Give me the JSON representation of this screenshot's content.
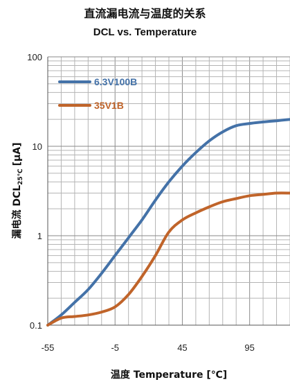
{
  "chart_data": {
    "type": "line",
    "title": "直流漏电流与温度的关系",
    "subtitle": "DCL vs. Temperature",
    "xlabel": "温度 Temperature [℃]",
    "ylabel": "漏电流 DCL25℃ [μA]",
    "ylabel_main": "漏电流 DCL",
    "ylabel_sub": "25℃",
    "ylabel_unit": "[μA]",
    "yscale": "log",
    "xlim": [
      -55,
      125
    ],
    "ylim": [
      0.1,
      100
    ],
    "x_ticks": [
      "-55",
      "-5",
      "45",
      "95"
    ],
    "y_ticks": [
      "0.1",
      "1",
      "10",
      "100"
    ],
    "grid": true,
    "legend_position": "top-left",
    "series": [
      {
        "name": "6.3V100B",
        "color": "#4472a8",
        "x": [
          -55,
          -45,
          -35,
          -25,
          -15,
          -5,
          5,
          15,
          25,
          35,
          45,
          55,
          65,
          75,
          85,
          95,
          105,
          115,
          125
        ],
        "y": [
          0.1,
          0.13,
          0.18,
          0.25,
          0.38,
          0.6,
          0.95,
          1.5,
          2.5,
          4.0,
          6.0,
          8.5,
          11.5,
          14.5,
          17.0,
          18.0,
          18.7,
          19.3,
          20.0
        ]
      },
      {
        "name": "35V1B",
        "color": "#c0642a",
        "x": [
          -55,
          -45,
          -35,
          -25,
          -15,
          -5,
          5,
          15,
          25,
          35,
          45,
          55,
          65,
          75,
          85,
          95,
          105,
          115,
          125
        ],
        "y": [
          0.1,
          0.12,
          0.125,
          0.13,
          0.14,
          0.16,
          0.22,
          0.35,
          0.6,
          1.1,
          1.5,
          1.8,
          2.1,
          2.4,
          2.6,
          2.8,
          2.9,
          3.0,
          3.0
        ]
      }
    ]
  }
}
